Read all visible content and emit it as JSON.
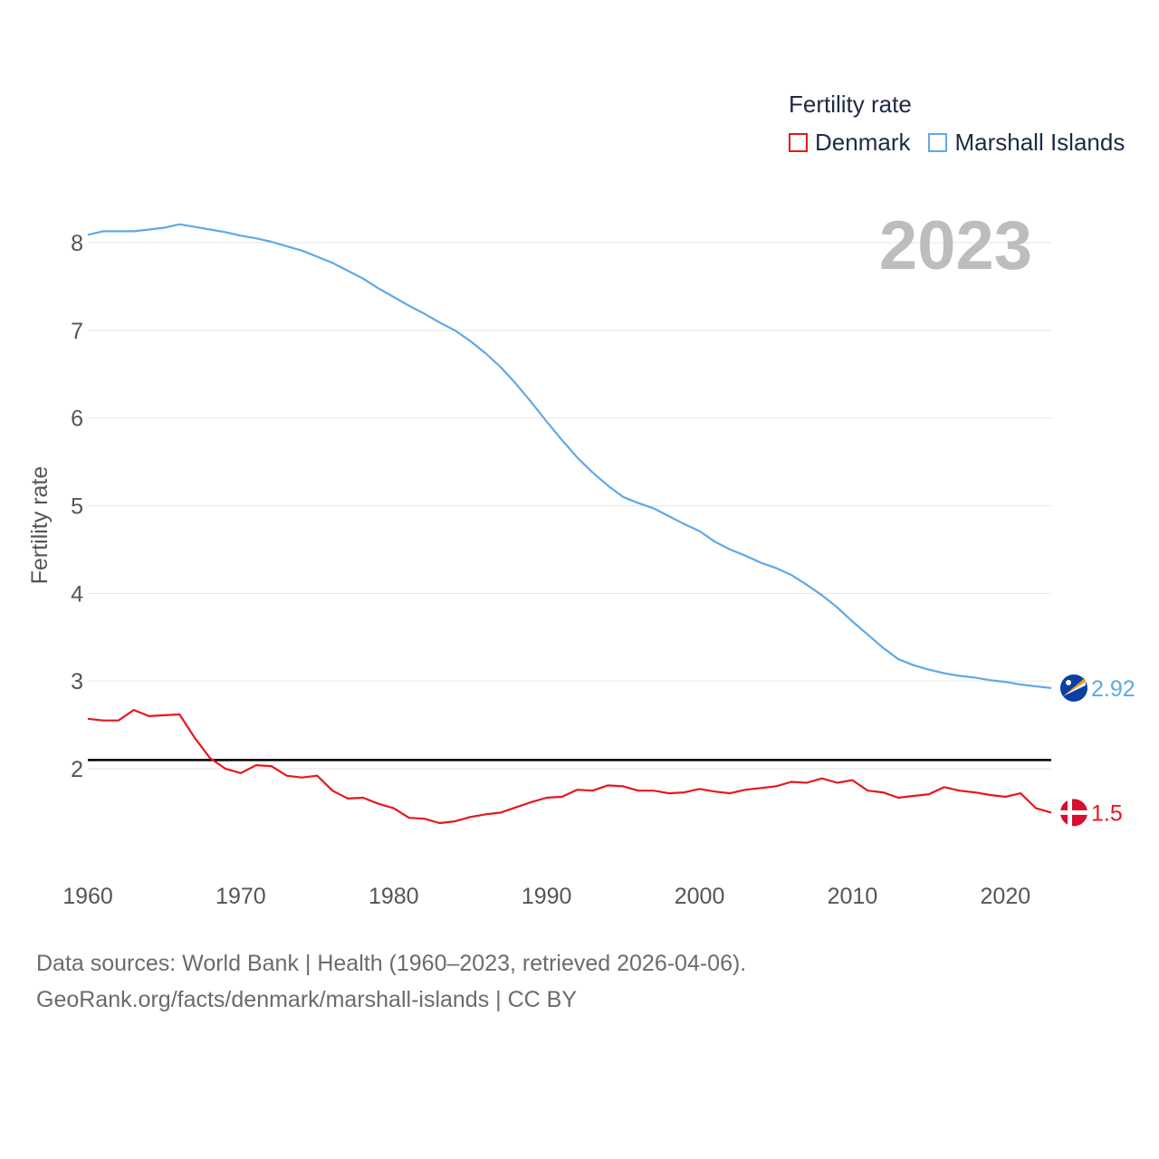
{
  "legend": {
    "title": "Fertility rate",
    "items": [
      {
        "label": "Denmark",
        "color": "#e8161d"
      },
      {
        "label": "Marshall Islands",
        "color": "#5fa8e8"
      }
    ]
  },
  "year_label": "2023",
  "source": {
    "line1": "Data sources: World Bank | Health (1960–2023, retrieved 2026-04-06).",
    "line2": "GeoRank.org/facts/denmark/marshall-islands | CC BY"
  },
  "chart_data": {
    "type": "line",
    "title": "",
    "xlabel": "",
    "ylabel": "Fertility rate",
    "xlim": [
      1960,
      2023
    ],
    "ylim": [
      1,
      8.5
    ],
    "x_ticks": [
      1960,
      1970,
      1980,
      1990,
      2000,
      2010,
      2020
    ],
    "y_ticks": [
      2,
      3,
      4,
      5,
      6,
      7,
      8
    ],
    "reference_line": {
      "value": 2.1,
      "color": "#000000"
    },
    "x": [
      1960,
      1961,
      1962,
      1963,
      1964,
      1965,
      1966,
      1967,
      1968,
      1969,
      1970,
      1971,
      1972,
      1973,
      1974,
      1975,
      1976,
      1977,
      1978,
      1979,
      1980,
      1981,
      1982,
      1983,
      1984,
      1985,
      1986,
      1987,
      1988,
      1989,
      1990,
      1991,
      1992,
      1993,
      1994,
      1995,
      1996,
      1997,
      1998,
      1999,
      2000,
      2001,
      2002,
      2003,
      2004,
      2005,
      2006,
      2007,
      2008,
      2009,
      2010,
      2011,
      2012,
      2013,
      2014,
      2015,
      2016,
      2017,
      2018,
      2019,
      2020,
      2021,
      2022,
      2023
    ],
    "series": [
      {
        "name": "Denmark",
        "color": "#e8161d",
        "end_label": "1.5",
        "values": [
          2.57,
          2.55,
          2.55,
          2.67,
          2.6,
          2.61,
          2.62,
          2.35,
          2.12,
          2.0,
          1.95,
          2.04,
          2.03,
          1.92,
          1.9,
          1.92,
          1.75,
          1.66,
          1.67,
          1.6,
          1.55,
          1.44,
          1.43,
          1.38,
          1.4,
          1.45,
          1.48,
          1.5,
          1.56,
          1.62,
          1.67,
          1.68,
          1.76,
          1.75,
          1.81,
          1.8,
          1.75,
          1.75,
          1.72,
          1.73,
          1.77,
          1.74,
          1.72,
          1.76,
          1.78,
          1.8,
          1.85,
          1.84,
          1.89,
          1.84,
          1.87,
          1.75,
          1.73,
          1.67,
          1.69,
          1.71,
          1.79,
          1.75,
          1.73,
          1.7,
          1.68,
          1.72,
          1.55,
          1.5
        ]
      },
      {
        "name": "Marshall Islands",
        "color": "#5fa8e8",
        "end_label": "2.92",
        "values": [
          8.09,
          8.13,
          8.13,
          8.13,
          8.15,
          8.17,
          8.21,
          8.18,
          8.15,
          8.12,
          8.08,
          8.05,
          8.01,
          7.96,
          7.91,
          7.84,
          7.77,
          7.68,
          7.59,
          7.48,
          7.38,
          7.28,
          7.19,
          7.09,
          7.0,
          6.88,
          6.74,
          6.58,
          6.39,
          6.18,
          5.96,
          5.75,
          5.55,
          5.38,
          5.23,
          5.1,
          5.03,
          4.97,
          4.88,
          4.79,
          4.71,
          4.59,
          4.5,
          4.43,
          4.35,
          4.29,
          4.21,
          4.1,
          3.98,
          3.84,
          3.68,
          3.53,
          3.38,
          3.25,
          3.18,
          3.13,
          3.09,
          3.06,
          3.04,
          3.01,
          2.99,
          2.96,
          2.94,
          2.92
        ]
      }
    ]
  }
}
